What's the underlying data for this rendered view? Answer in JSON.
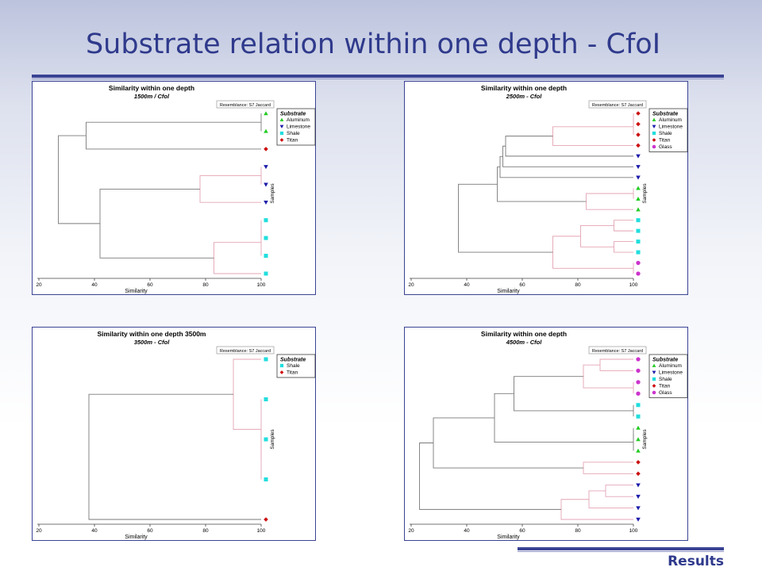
{
  "slide": {
    "title": "Substrate relation within one depth - CfoI",
    "footer": "Results"
  },
  "colors": {
    "Aluminum": "#22cc22",
    "Limestone": "#1a1aaa",
    "Shale": "#22dddd",
    "Titan": "#cc1111",
    "Glass": "#cc33cc",
    "tree_grey": "#7a7a7a",
    "tree_pink": "#e4a4b4"
  },
  "chart_data": [
    {
      "type": "dendrogram",
      "title": "Similarity within one depth",
      "subtitle": "1500m /  Cfol",
      "resemblance": "Resemblance: S7 Jaccard",
      "xlabel": "Similarity",
      "ylabel": "Samples",
      "xticks": [
        20,
        40,
        60,
        80,
        100
      ],
      "xlim": [
        20,
        100
      ],
      "legend_title": "Substrate",
      "legend": [
        "Aluminum",
        "Limestone",
        "Shale",
        "Titan"
      ],
      "leaves": [
        "Aluminum",
        "Aluminum",
        "Titan",
        "Limestone",
        "Limestone",
        "Limestone",
        "Shale",
        "Shale",
        "Shale",
        "Shale"
      ],
      "merges": [
        {
          "a": 0,
          "b": 1,
          "h": 100,
          "pink": false
        },
        {
          "a": 10,
          "b": 2,
          "h": 37,
          "pink": false
        },
        {
          "a": 3,
          "b": 4,
          "h": 100,
          "pink": true
        },
        {
          "a": 12,
          "b": 5,
          "h": 78,
          "pink": true
        },
        {
          "a": 6,
          "b": 7,
          "h": 100,
          "pink": true
        },
        {
          "a": 14,
          "b": 8,
          "h": 100,
          "pink": true
        },
        {
          "a": 15,
          "b": 9,
          "h": 83,
          "pink": true
        },
        {
          "a": 13,
          "b": 16,
          "h": 42,
          "pink": false
        },
        {
          "a": 11,
          "b": 17,
          "h": 27,
          "pink": false
        }
      ]
    },
    {
      "type": "dendrogram",
      "title": "Similarity within one depth",
      "subtitle": "2500m - Cfol",
      "resemblance": "Resemblance: S7 Jaccard",
      "xlabel": "Similarity",
      "ylabel": "Samples",
      "xticks": [
        20,
        40,
        60,
        80,
        100
      ],
      "xlim": [
        20,
        100
      ],
      "legend_title": "Substrate",
      "legend": [
        "Aluminum",
        "Limestone",
        "Shale",
        "Titan",
        "Glass"
      ],
      "leaves": [
        "Titan",
        "Titan",
        "Titan",
        "Titan",
        "Limestone",
        "Limestone",
        "Limestone",
        "Aluminum",
        "Aluminum",
        "Aluminum",
        "Shale",
        "Shale",
        "Shale",
        "Shale",
        "Glass",
        "Glass"
      ],
      "merges": [
        {
          "a": 0,
          "b": 1,
          "h": 100,
          "pink": true
        },
        {
          "a": 16,
          "b": 2,
          "h": 100,
          "pink": true
        },
        {
          "a": 17,
          "b": 3,
          "h": 71,
          "pink": true
        },
        {
          "a": 18,
          "b": 4,
          "h": 54,
          "pink": false
        },
        {
          "a": 19,
          "b": 5,
          "h": 53,
          "pink": false
        },
        {
          "a": 20,
          "b": 6,
          "h": 52,
          "pink": false
        },
        {
          "a": 7,
          "b": 8,
          "h": 100,
          "pink": true
        },
        {
          "a": 22,
          "b": 9,
          "h": 83,
          "pink": true
        },
        {
          "a": 21,
          "b": 23,
          "h": 51,
          "pink": false
        },
        {
          "a": 10,
          "b": 11,
          "h": 93,
          "pink": true
        },
        {
          "a": 12,
          "b": 13,
          "h": 93,
          "pink": true
        },
        {
          "a": 25,
          "b": 26,
          "h": 81,
          "pink": true
        },
        {
          "a": 14,
          "b": 15,
          "h": 100,
          "pink": true
        },
        {
          "a": 27,
          "b": 28,
          "h": 71,
          "pink": true
        },
        {
          "a": 24,
          "b": 29,
          "h": 37,
          "pink": false
        }
      ]
    },
    {
      "type": "dendrogram",
      "title": "Similarity within one depth 3500m",
      "subtitle": "3500m - Cfol",
      "resemblance": "Resemblance: S7 Jaccard",
      "xlabel": "Similarity",
      "ylabel": "Samples",
      "xticks": [
        20,
        40,
        60,
        80,
        100
      ],
      "xlim": [
        20,
        100
      ],
      "legend_title": "Substrate",
      "legend": [
        "Shale",
        "Titan"
      ],
      "leaves": [
        "Shale",
        "Shale",
        "Shale",
        "Shale",
        "Titan"
      ],
      "merges": [
        {
          "a": 2,
          "b": 3,
          "h": 100,
          "pink": true
        },
        {
          "a": 1,
          "b": 5,
          "h": 100,
          "pink": true
        },
        {
          "a": 0,
          "b": 6,
          "h": 90,
          "pink": true
        },
        {
          "a": 7,
          "b": 4,
          "h": 38,
          "pink": false
        }
      ]
    },
    {
      "type": "dendrogram",
      "title": "Similarity within one depth",
      "subtitle": "4500m - Cfol",
      "resemblance": "Resemblance: S7 Jaccard",
      "xlabel": "Similarity",
      "ylabel": "Samples",
      "xticks": [
        20,
        40,
        60,
        80,
        100
      ],
      "xlim": [
        20,
        100
      ],
      "legend_title": "Substrate",
      "legend": [
        "Aluminum",
        "Limestone",
        "Shale",
        "Titan",
        "Glass"
      ],
      "leaves": [
        "Glass",
        "Glass",
        "Glass",
        "Glass",
        "Shale",
        "Shale",
        "Aluminum",
        "Aluminum",
        "Aluminum",
        "Titan",
        "Titan",
        "Limestone",
        "Limestone",
        "Limestone",
        "Limestone"
      ],
      "merges": [
        {
          "a": 0,
          "b": 1,
          "h": 88,
          "pink": true
        },
        {
          "a": 2,
          "b": 3,
          "h": 100,
          "pink": true
        },
        {
          "a": 15,
          "b": 16,
          "h": 82,
          "pink": true
        },
        {
          "a": 4,
          "b": 5,
          "h": 100,
          "pink": false
        },
        {
          "a": 17,
          "b": 18,
          "h": 57,
          "pink": false
        },
        {
          "a": 6,
          "b": 7,
          "h": 100,
          "pink": false
        },
        {
          "a": 20,
          "b": 8,
          "h": 100,
          "pink": false
        },
        {
          "a": 19,
          "b": 21,
          "h": 50,
          "pink": false
        },
        {
          "a": 9,
          "b": 10,
          "h": 82,
          "pink": true
        },
        {
          "a": 22,
          "b": 23,
          "h": 28,
          "pink": false
        },
        {
          "a": 11,
          "b": 12,
          "h": 90,
          "pink": true
        },
        {
          "a": 25,
          "b": 13,
          "h": 84,
          "pink": true
        },
        {
          "a": 26,
          "b": 14,
          "h": 74,
          "pink": true
        },
        {
          "a": 24,
          "b": 27,
          "h": 23,
          "pink": false
        }
      ]
    }
  ]
}
